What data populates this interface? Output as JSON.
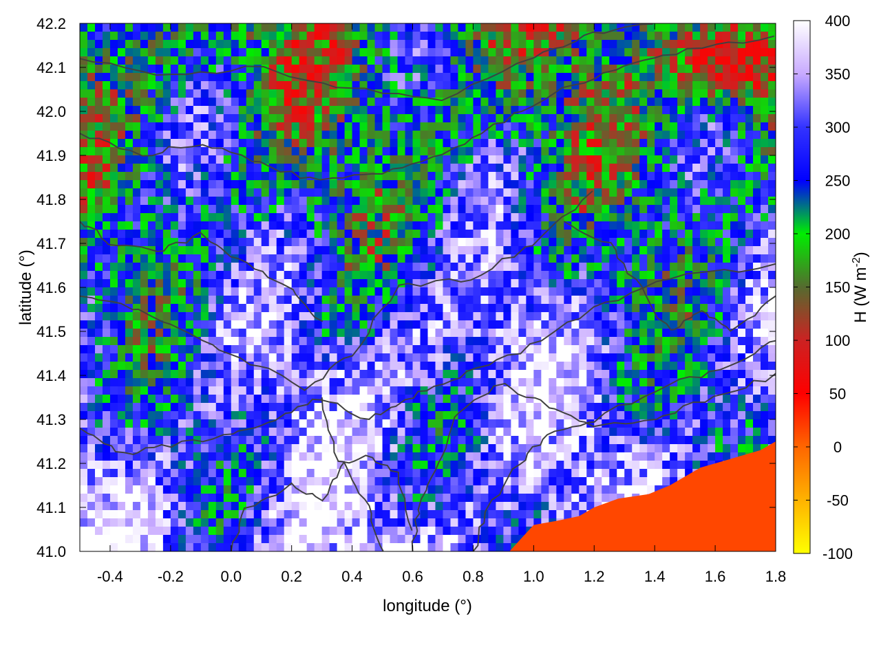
{
  "chart_data": {
    "type": "heatmap",
    "xlabel": "longitude (°)",
    "ylabel": "latitude (°)",
    "xlim": [
      -0.5,
      1.8
    ],
    "ylim": [
      41.0,
      42.2
    ],
    "x_ticks": [
      "-0.4",
      "-0.2",
      "0.0",
      "0.2",
      "0.4",
      "0.6",
      "0.8",
      "1.0",
      "1.2",
      "1.4",
      "1.6",
      "1.8"
    ],
    "x_tick_values": [
      -0.4,
      -0.2,
      0.0,
      0.2,
      0.4,
      0.6,
      0.8,
      1.0,
      1.2,
      1.4,
      1.6,
      1.8
    ],
    "y_ticks": [
      "41.0",
      "41.1",
      "41.2",
      "41.3",
      "41.4",
      "41.5",
      "41.6",
      "41.7",
      "41.8",
      "41.9",
      "42.0",
      "42.1",
      "42.2"
    ],
    "y_tick_values": [
      41.0,
      41.1,
      41.2,
      41.3,
      41.4,
      41.5,
      41.6,
      41.7,
      41.8,
      41.9,
      42.0,
      42.1,
      42.2
    ],
    "colorbar": {
      "range": [
        -100,
        400
      ],
      "ticks": [
        "400",
        "350",
        "300",
        "250",
        "200",
        "150",
        "100",
        "50",
        "0",
        "-50",
        "-100"
      ],
      "tick_values": [
        400,
        350,
        300,
        250,
        200,
        150,
        100,
        50,
        0,
        -50,
        -100
      ],
      "label_main": "H (W m",
      "label_sup": "-2",
      "label_close": ")",
      "stops": [
        {
          "value": -100,
          "color": "#ffff00"
        },
        {
          "value": 0,
          "color": "#ff6600"
        },
        {
          "value": 50,
          "color": "#ff0000"
        },
        {
          "value": 100,
          "color": "#cc2222"
        },
        {
          "value": 150,
          "color": "#556b2f"
        },
        {
          "value": 200,
          "color": "#00ee00"
        },
        {
          "value": 250,
          "color": "#0000ff"
        },
        {
          "value": 300,
          "color": "#3333ff"
        },
        {
          "value": 350,
          "color": "#c8aaff"
        },
        {
          "value": 400,
          "color": "#ffffff"
        }
      ]
    },
    "field_description": "sensible heat flux over land with sea in the lower-right corner",
    "sea_value": 15,
    "coastline": [
      [
        0.92,
        41.0
      ],
      [
        1.0,
        41.06
      ],
      [
        1.08,
        41.07
      ],
      [
        1.15,
        41.08
      ],
      [
        1.2,
        41.1
      ],
      [
        1.28,
        41.12
      ],
      [
        1.38,
        41.13
      ],
      [
        1.45,
        41.15
      ],
      [
        1.55,
        41.19
      ],
      [
        1.65,
        41.21
      ],
      [
        1.75,
        41.23
      ],
      [
        1.8,
        41.25
      ]
    ],
    "colors": {
      "contour": "#404040",
      "frame": "#000000",
      "background": "#ffffff"
    }
  }
}
